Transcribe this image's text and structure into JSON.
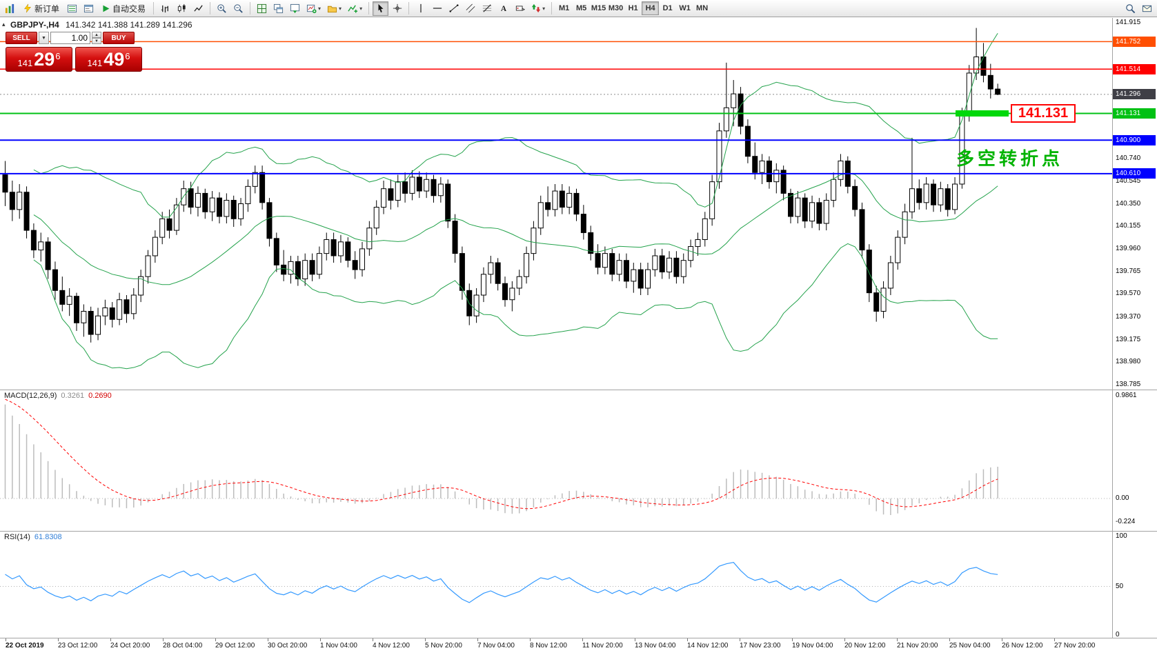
{
  "toolbar": {
    "new_order_label": "新订单",
    "autotrade_label": "自动交易",
    "timeframes": [
      "M1",
      "M5",
      "M15",
      "M30",
      "H1",
      "H4",
      "D1",
      "W1",
      "MN"
    ],
    "active_timeframe": "H4"
  },
  "chart": {
    "symbol_label": "GBPJPY-,H4",
    "ohlc_text": "141.342 141.388 141.289 141.296",
    "trade_panel": {
      "sell_label": "SELL",
      "buy_label": "BUY",
      "volume": "1.00",
      "sell_price": {
        "prefix": "141",
        "pips": "29",
        "pipette": "6"
      },
      "buy_price": {
        "prefix": "141",
        "pips": "49",
        "pipette": "6"
      }
    },
    "levels": [
      {
        "price": 141.752,
        "label": "141.752",
        "color": "#ff4f02",
        "width": 1.5
      },
      {
        "price": 141.514,
        "label": "141.514",
        "color": "#ff0000",
        "width": 1.5
      },
      {
        "price": 141.131,
        "label": "141.131",
        "color": "#00c114",
        "width": 2
      },
      {
        "price": 140.9,
        "label": "140.900",
        "color": "#0000ff",
        "width": 2
      },
      {
        "price": 140.61,
        "label": "140.610",
        "color": "#0000ff",
        "width": 2
      }
    ],
    "current_price": {
      "price": 141.296,
      "label": "141.296",
      "color": "#3f3f46"
    },
    "highlight_segment": {
      "price": 141.131,
      "color": "#00d80a"
    },
    "annotation_box_text": "141.131",
    "annotation_cn_text": "多空转折点",
    "axis_labels": [
      "141.915",
      "141.720",
      "140.740",
      "140.545",
      "140.350",
      "140.155",
      "139.960",
      "139.765",
      "139.570",
      "139.370",
      "139.175",
      "138.980",
      "138.785"
    ]
  },
  "chart_data": {
    "type": "candlestick",
    "symbol": "GBPJPY-",
    "timeframe": "H4",
    "y_axis": {
      "visible_min": 138.785,
      "visible_max": 141.915
    },
    "overlays": {
      "bollinger": {
        "period": 20,
        "deviation": 2,
        "color": "#23a24b"
      }
    },
    "candles": [
      [
        140.6,
        140.72,
        140.33,
        140.45
      ],
      [
        140.45,
        140.55,
        140.2,
        140.3
      ],
      [
        140.3,
        140.52,
        140.22,
        140.45
      ],
      [
        140.45,
        140.5,
        140.05,
        140.12
      ],
      [
        140.12,
        140.18,
        139.88,
        139.95
      ],
      [
        139.95,
        140.1,
        139.85,
        140.02
      ],
      [
        140.02,
        140.06,
        139.7,
        139.78
      ],
      [
        139.78,
        139.85,
        139.52,
        139.6
      ],
      [
        139.6,
        139.72,
        139.42,
        139.48
      ],
      [
        139.48,
        139.62,
        139.38,
        139.55
      ],
      [
        139.55,
        139.58,
        139.25,
        139.32
      ],
      [
        139.32,
        139.48,
        139.2,
        139.42
      ],
      [
        139.42,
        139.46,
        139.15,
        139.22
      ],
      [
        139.22,
        139.45,
        139.17,
        139.38
      ],
      [
        139.38,
        139.52,
        139.3,
        139.45
      ],
      [
        139.45,
        139.5,
        139.28,
        139.35
      ],
      [
        139.35,
        139.58,
        139.3,
        139.52
      ],
      [
        139.52,
        139.56,
        139.32,
        139.4
      ],
      [
        139.4,
        139.62,
        139.35,
        139.56
      ],
      [
        139.56,
        139.78,
        139.5,
        139.72
      ],
      [
        139.72,
        139.95,
        139.66,
        139.9
      ],
      [
        139.9,
        140.12,
        139.84,
        140.06
      ],
      [
        140.06,
        140.28,
        140.0,
        140.22
      ],
      [
        140.22,
        140.3,
        140.05,
        140.12
      ],
      [
        140.12,
        140.4,
        140.08,
        140.34
      ],
      [
        140.34,
        140.55,
        140.28,
        140.48
      ],
      [
        140.48,
        140.54,
        140.26,
        140.32
      ],
      [
        140.32,
        140.5,
        140.24,
        140.44
      ],
      [
        140.44,
        140.48,
        140.22,
        140.28
      ],
      [
        140.28,
        140.46,
        140.2,
        140.4
      ],
      [
        140.4,
        140.45,
        140.18,
        140.24
      ],
      [
        140.24,
        140.44,
        140.18,
        140.38
      ],
      [
        140.38,
        140.42,
        140.15,
        140.22
      ],
      [
        140.22,
        140.4,
        140.16,
        140.35
      ],
      [
        140.35,
        140.56,
        140.28,
        140.5
      ],
      [
        140.5,
        140.68,
        140.44,
        140.62
      ],
      [
        140.62,
        140.68,
        140.3,
        140.36
      ],
      [
        140.36,
        140.4,
        139.98,
        140.05
      ],
      [
        140.05,
        140.1,
        139.76,
        139.82
      ],
      [
        139.82,
        139.95,
        139.68,
        139.74
      ],
      [
        139.74,
        139.9,
        139.66,
        139.85
      ],
      [
        139.85,
        139.9,
        139.64,
        139.7
      ],
      [
        139.7,
        139.92,
        139.64,
        139.86
      ],
      [
        139.86,
        139.92,
        139.68,
        139.74
      ],
      [
        139.74,
        139.98,
        139.7,
        139.92
      ],
      [
        139.92,
        140.1,
        139.86,
        140.04
      ],
      [
        140.04,
        140.1,
        139.84,
        139.9
      ],
      [
        139.9,
        140.08,
        139.84,
        140.02
      ],
      [
        140.02,
        140.06,
        139.8,
        139.86
      ],
      [
        139.86,
        139.94,
        139.7,
        139.78
      ],
      [
        139.78,
        140.02,
        139.72,
        139.96
      ],
      [
        139.96,
        140.2,
        139.9,
        140.14
      ],
      [
        140.14,
        140.38,
        140.08,
        140.32
      ],
      [
        140.32,
        140.55,
        140.26,
        140.48
      ],
      [
        140.48,
        140.56,
        140.3,
        140.38
      ],
      [
        140.38,
        140.6,
        140.32,
        140.54
      ],
      [
        140.54,
        140.62,
        140.36,
        140.44
      ],
      [
        140.44,
        140.64,
        140.38,
        140.58
      ],
      [
        140.58,
        140.63,
        140.4,
        140.46
      ],
      [
        140.46,
        140.62,
        140.4,
        140.56
      ],
      [
        140.56,
        140.6,
        140.36,
        140.42
      ],
      [
        140.42,
        140.58,
        140.36,
        140.52
      ],
      [
        140.52,
        140.56,
        140.14,
        140.2
      ],
      [
        140.2,
        140.26,
        139.84,
        139.92
      ],
      [
        139.92,
        139.98,
        139.52,
        139.6
      ],
      [
        139.6,
        139.66,
        139.3,
        139.38
      ],
      [
        139.38,
        139.62,
        139.32,
        139.56
      ],
      [
        139.56,
        139.8,
        139.5,
        139.74
      ],
      [
        139.74,
        139.9,
        139.66,
        139.84
      ],
      [
        139.84,
        139.88,
        139.6,
        139.66
      ],
      [
        139.66,
        139.72,
        139.46,
        139.52
      ],
      [
        139.52,
        139.68,
        139.42,
        139.62
      ],
      [
        139.62,
        139.78,
        139.56,
        139.72
      ],
      [
        139.72,
        139.98,
        139.66,
        139.92
      ],
      [
        139.92,
        140.2,
        139.86,
        140.14
      ],
      [
        140.14,
        140.42,
        140.08,
        140.36
      ],
      [
        140.36,
        140.5,
        140.24,
        140.3
      ],
      [
        140.3,
        140.52,
        140.24,
        140.46
      ],
      [
        140.46,
        140.52,
        140.26,
        140.32
      ],
      [
        140.32,
        140.5,
        140.26,
        140.44
      ],
      [
        140.44,
        140.48,
        140.2,
        140.26
      ],
      [
        140.26,
        140.34,
        140.04,
        140.1
      ],
      [
        140.1,
        140.16,
        139.86,
        139.92
      ],
      [
        139.92,
        140.0,
        139.74,
        139.8
      ],
      [
        139.8,
        139.98,
        139.74,
        139.92
      ],
      [
        139.92,
        139.96,
        139.68,
        139.74
      ],
      [
        139.74,
        139.92,
        139.68,
        139.86
      ],
      [
        139.86,
        139.92,
        139.62,
        139.68
      ],
      [
        139.68,
        139.84,
        139.58,
        139.78
      ],
      [
        139.78,
        139.84,
        139.56,
        139.62
      ],
      [
        139.62,
        139.84,
        139.56,
        139.78
      ],
      [
        139.78,
        139.96,
        139.72,
        139.9
      ],
      [
        139.9,
        139.96,
        139.7,
        139.76
      ],
      [
        139.76,
        139.94,
        139.7,
        139.88
      ],
      [
        139.88,
        139.94,
        139.66,
        139.72
      ],
      [
        139.72,
        139.92,
        139.66,
        139.86
      ],
      [
        139.86,
        140.04,
        139.8,
        139.98
      ],
      [
        139.98,
        140.1,
        139.9,
        140.04
      ],
      [
        140.04,
        140.28,
        139.98,
        140.22
      ],
      [
        140.22,
        140.6,
        140.16,
        140.54
      ],
      [
        140.54,
        141.05,
        140.48,
        140.98
      ],
      [
        140.98,
        141.57,
        140.92,
        141.18
      ],
      [
        141.18,
        141.42,
        141.02,
        141.3
      ],
      [
        141.3,
        141.36,
        140.95,
        141.02
      ],
      [
        141.02,
        141.08,
        140.7,
        140.76
      ],
      [
        140.76,
        140.88,
        140.56,
        140.62
      ],
      [
        140.62,
        140.78,
        140.52,
        140.72
      ],
      [
        140.72,
        140.76,
        140.48,
        140.54
      ],
      [
        140.54,
        140.7,
        140.44,
        140.64
      ],
      [
        140.64,
        140.68,
        140.38,
        140.44
      ],
      [
        140.44,
        140.48,
        140.18,
        140.24
      ],
      [
        140.24,
        140.46,
        140.18,
        140.4
      ],
      [
        140.4,
        140.44,
        140.14,
        140.2
      ],
      [
        140.2,
        140.42,
        140.14,
        140.36
      ],
      [
        140.36,
        140.4,
        140.12,
        140.18
      ],
      [
        140.18,
        140.44,
        140.12,
        140.38
      ],
      [
        140.38,
        140.62,
        140.32,
        140.56
      ],
      [
        140.56,
        140.78,
        140.5,
        140.72
      ],
      [
        140.72,
        140.76,
        140.44,
        140.5
      ],
      [
        140.5,
        140.56,
        140.24,
        140.3
      ],
      [
        140.3,
        140.36,
        139.88,
        139.95
      ],
      [
        139.95,
        140.0,
        139.5,
        139.58
      ],
      [
        139.58,
        139.64,
        139.33,
        139.42
      ],
      [
        139.42,
        139.68,
        139.36,
        139.62
      ],
      [
        139.62,
        139.9,
        139.56,
        139.84
      ],
      [
        139.84,
        140.12,
        139.78,
        140.06
      ],
      [
        140.06,
        140.35,
        140.0,
        140.28
      ],
      [
        140.28,
        140.92,
        140.22,
        140.48
      ],
      [
        140.48,
        140.56,
        140.3,
        140.36
      ],
      [
        140.36,
        140.58,
        140.3,
        140.52
      ],
      [
        140.52,
        140.56,
        140.28,
        140.34
      ],
      [
        140.34,
        140.54,
        140.28,
        140.48
      ],
      [
        140.48,
        140.52,
        140.24,
        140.3
      ],
      [
        140.3,
        140.58,
        140.26,
        140.52
      ],
      [
        140.52,
        141.18,
        140.48,
        141.12
      ],
      [
        141.12,
        141.55,
        141.06,
        141.48
      ],
      [
        141.48,
        141.87,
        141.42,
        141.62
      ],
      [
        141.62,
        141.74,
        141.4,
        141.46
      ],
      [
        141.46,
        141.56,
        141.26,
        141.342
      ],
      [
        141.342,
        141.388,
        141.289,
        141.296
      ]
    ]
  },
  "macd_panel": {
    "name": "MACD(12,26,9)",
    "main_value": "0.3261",
    "signal_value": "0.2690",
    "axis_labels": [
      "0.9861",
      "0.00",
      "-0.224"
    ],
    "params": {
      "fast": 12,
      "slow": 26,
      "signal": 9
    },
    "hist_color": "#bcbcbc",
    "signal_color": "#ff0000"
  },
  "rsi_panel": {
    "name": "RSI(14)",
    "value": "61.8308",
    "axis_labels": [
      "100",
      "50",
      "0"
    ],
    "period": 14,
    "color": "#3399ff"
  },
  "time_axis": {
    "labels": [
      "22 Oct 2019",
      "23 Oct 12:00",
      "24 Oct 20:00",
      "28 Oct 04:00",
      "29 Oct 12:00",
      "30 Oct 20:00",
      "1 Nov 04:00",
      "4 Nov 12:00",
      "5 Nov 20:00",
      "7 Nov 04:00",
      "8 Nov 12:00",
      "11 Nov 20:00",
      "13 Nov 04:00",
      "14 Nov 12:00",
      "17 Nov 23:00",
      "19 Nov 04:00",
      "20 Nov 12:00",
      "21 Nov 20:00",
      "25 Nov 04:00",
      "26 Nov 12:00",
      "27 Nov 20:00"
    ]
  }
}
